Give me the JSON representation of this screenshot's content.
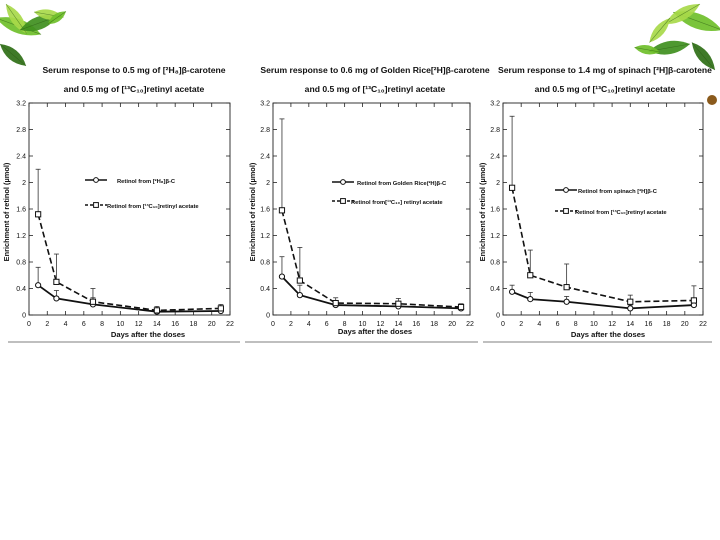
{
  "slide": {
    "background": "#ffffff",
    "decoration_left": "leaf-cluster-left",
    "decoration_right": "leaf-cluster-right",
    "leaf_colors": [
      "#3f8f1e",
      "#6fbf2a",
      "#a8d94a",
      "#2f6f16"
    ],
    "chart_line_color": "#111111"
  },
  "chart_data": [
    {
      "type": "line",
      "title_line1": "Serum response to 0.5 mg of [²H₈]β-carotene",
      "title_line2": "and 0.5 mg of [¹³C₁₀]retinyl acetate",
      "xlabel": "Days after the doses",
      "ylabel": "Enrichment of retinol (µmol)",
      "xlim": [
        0,
        22
      ],
      "ylim": [
        0,
        3.2
      ],
      "xticks": [
        0,
        2,
        4,
        6,
        8,
        10,
        12,
        14,
        16,
        18,
        20,
        22
      ],
      "yticks": [
        0,
        0.4,
        0.8,
        1.2,
        1.6,
        2,
        2.4,
        2.8,
        3.2
      ],
      "ytick_labels": [
        "0",
        "0.4",
        "0.8",
        "1.2",
        "1.6",
        "2",
        "2.4",
        "2.8",
        "3.2"
      ],
      "legend_position": "right",
      "series": [
        {
          "name": "Retinol from [²H₈]β-C",
          "style": "solid",
          "marker": "circle",
          "x": [
            1,
            3,
            7,
            14,
            21
          ],
          "y": [
            0.45,
            0.25,
            0.16,
            0.05,
            0.06
          ],
          "err": [
            0.27,
            0.12,
            0.1,
            0.04,
            0.05
          ]
        },
        {
          "name": "Retinol from [¹³C₁₀]retinyl acetate",
          "style": "dashed",
          "marker": "square",
          "x": [
            1,
            3,
            7,
            14,
            21
          ],
          "y": [
            1.52,
            0.5,
            0.2,
            0.07,
            0.1
          ],
          "err": [
            0.68,
            0.42,
            0.2,
            0.06,
            0.06
          ]
        }
      ]
    },
    {
      "type": "line",
      "title_line1": "Serum response to 0.6 mg of Golden Rice[²H]β-carotene",
      "title_line2": "and 0.5 mg of [¹³C₁₀]retinyl acetate",
      "xlabel": "Days after the doses",
      "ylabel": "Enrichment of retinol (µmol)",
      "xlim": [
        0,
        22
      ],
      "ylim": [
        0,
        3.2
      ],
      "xticks": [
        0,
        2,
        4,
        6,
        8,
        10,
        12,
        14,
        16,
        18,
        20,
        22
      ],
      "yticks": [
        0,
        0.4,
        0.8,
        1.2,
        1.6,
        2,
        2.4,
        2.8,
        3.2
      ],
      "ytick_labels": [
        "0",
        "0.4",
        "0.8",
        "1.2",
        "1.6",
        "2",
        "2.4",
        "2.8",
        "3.2"
      ],
      "legend_position": "right",
      "series": [
        {
          "name": "Retinol from Golden Rice(²H)β-C",
          "style": "solid",
          "marker": "circle",
          "x": [
            1,
            3,
            7,
            14,
            21
          ],
          "y": [
            0.58,
            0.3,
            0.15,
            0.13,
            0.1
          ],
          "err": [
            0.3,
            0.15,
            0.06,
            0.05,
            0.04
          ]
        },
        {
          "name": "Retinol from[¹³C₁₀] retinyl acetate",
          "style": "dashed",
          "marker": "square",
          "x": [
            1,
            3,
            7,
            14,
            21
          ],
          "y": [
            1.58,
            0.52,
            0.18,
            0.17,
            0.12
          ],
          "err": [
            1.38,
            0.5,
            0.08,
            0.08,
            0.05
          ]
        }
      ]
    },
    {
      "type": "line",
      "title_line1": "Serum response to 1.4 mg of spinach [²H]β-carotene",
      "title_line2": "and 0.5 mg of [¹³C₁₀]retinyl acetate",
      "xlabel": "Days after the doses",
      "ylabel": "Enrichment of retinol (µmol)",
      "xlim": [
        0,
        22
      ],
      "ylim": [
        0,
        3.2
      ],
      "xticks": [
        0,
        2,
        4,
        6,
        8,
        10,
        12,
        14,
        16,
        18,
        20,
        22
      ],
      "yticks": [
        0,
        0.4,
        0.8,
        1.2,
        1.6,
        2,
        2.4,
        2.8,
        3.2
      ],
      "ytick_labels": [
        "0",
        "0.4",
        "0.8",
        "1.2",
        "1.6",
        "2",
        "2.4",
        "2.8",
        "3.2"
      ],
      "legend_position": "right",
      "series": [
        {
          "name": "Retinol from spinach [²H]β-C",
          "style": "solid",
          "marker": "circle",
          "x": [
            1,
            3,
            7,
            14,
            21
          ],
          "y": [
            0.35,
            0.24,
            0.2,
            0.1,
            0.15
          ],
          "err": [
            0.1,
            0.1,
            0.08,
            0.05,
            0.08
          ]
        },
        {
          "name": "Retinol from [¹³C₁₀]retinyl acetate",
          "style": "dashed",
          "marker": "square",
          "x": [
            1,
            3,
            7,
            14,
            21
          ],
          "y": [
            1.92,
            0.6,
            0.42,
            0.2,
            0.22
          ],
          "err": [
            1.08,
            0.38,
            0.35,
            0.1,
            0.22
          ]
        }
      ]
    }
  ]
}
